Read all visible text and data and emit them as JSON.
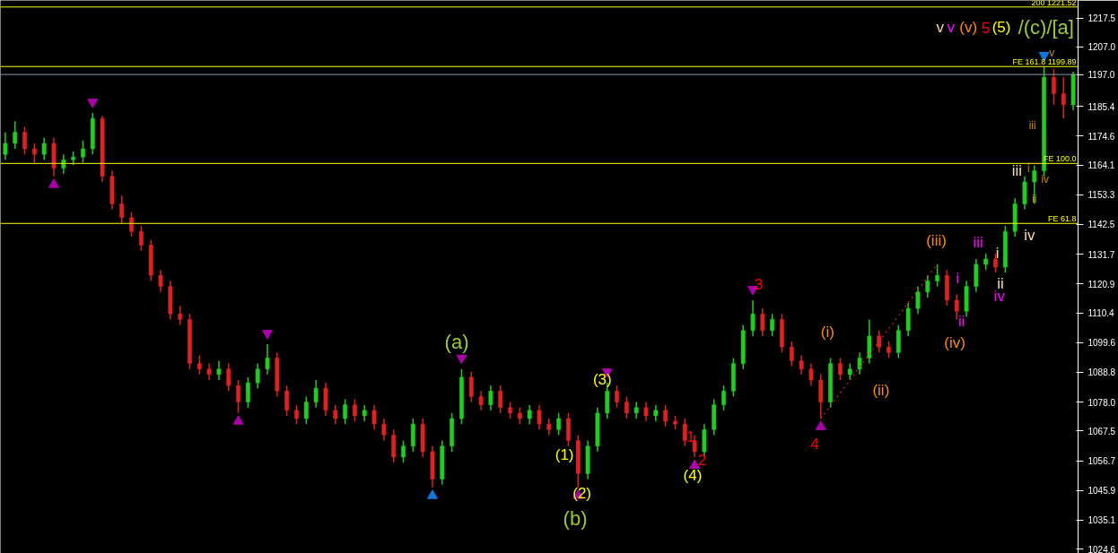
{
  "chart_data": {
    "type": "candlestick",
    "categories": [
      null,
      null,
      null,
      null,
      null,
      null,
      null,
      null,
      null,
      null,
      null,
      null,
      null,
      null,
      null,
      null,
      null,
      null,
      null,
      null,
      null,
      null,
      null,
      null,
      null,
      null,
      null,
      null,
      null,
      null,
      null,
      null,
      null,
      null,
      null,
      null,
      null,
      null,
      null,
      null,
      null,
      null,
      null,
      null,
      null,
      null,
      null,
      null,
      null,
      null,
      null,
      null,
      null,
      null,
      null,
      null,
      null,
      null,
      null,
      null,
      null,
      null,
      null,
      null,
      null,
      null,
      null,
      null,
      null,
      null,
      null,
      null,
      null,
      null,
      null,
      null,
      null,
      null,
      null,
      null,
      null,
      null,
      null,
      null,
      null,
      null,
      null,
      null,
      null,
      null,
      null,
      null,
      null,
      null,
      null,
      null,
      null,
      null,
      null,
      null,
      null,
      null,
      null,
      null,
      null,
      null,
      null,
      null,
      null,
      null,
      null
    ],
    "ohlc": [
      [
        1168,
        1176,
        1166,
        1172
      ],
      [
        1172,
        1180,
        1170,
        1176
      ],
      [
        1176,
        1178,
        1168,
        1170
      ],
      [
        1170,
        1172,
        1165,
        1168
      ],
      [
        1168,
        1174,
        1166,
        1172
      ],
      [
        1172,
        1174,
        1160,
        1163
      ],
      [
        1163,
        1168,
        1161,
        1166
      ],
      [
        1166,
        1169,
        1164,
        1167
      ],
      [
        1167,
        1173,
        1165,
        1170
      ],
      [
        1170,
        1183,
        1168,
        1181
      ],
      [
        1181,
        1182,
        1158,
        1160
      ],
      [
        1160,
        1162,
        1148,
        1150
      ],
      [
        1150,
        1153,
        1143,
        1145
      ],
      [
        1145,
        1147,
        1138,
        1140
      ],
      [
        1140,
        1142,
        1133,
        1135
      ],
      [
        1135,
        1137,
        1122,
        1124
      ],
      [
        1124,
        1126,
        1118,
        1120
      ],
      [
        1120,
        1122,
        1108,
        1110
      ],
      [
        1110,
        1113,
        1106,
        1108
      ],
      [
        1108,
        1110,
        1090,
        1092
      ],
      [
        1092,
        1095,
        1088,
        1090
      ],
      [
        1090,
        1092,
        1086,
        1088
      ],
      [
        1088,
        1093,
        1086,
        1090
      ],
      [
        1090,
        1092,
        1082,
        1084
      ],
      [
        1084,
        1086,
        1074,
        1078
      ],
      [
        1078,
        1087,
        1076,
        1085
      ],
      [
        1085,
        1092,
        1083,
        1090
      ],
      [
        1090,
        1099,
        1088,
        1094
      ],
      [
        1094,
        1096,
        1080,
        1082
      ],
      [
        1082,
        1084,
        1073,
        1075
      ],
      [
        1075,
        1077,
        1070,
        1072
      ],
      [
        1072,
        1080,
        1070,
        1078
      ],
      [
        1078,
        1086,
        1076,
        1083
      ],
      [
        1083,
        1085,
        1073,
        1075
      ],
      [
        1075,
        1077,
        1070,
        1072
      ],
      [
        1072,
        1079,
        1070,
        1077
      ],
      [
        1077,
        1079,
        1071,
        1073
      ],
      [
        1073,
        1077,
        1071,
        1075
      ],
      [
        1075,
        1077,
        1068,
        1070
      ],
      [
        1070,
        1072,
        1064,
        1066
      ],
      [
        1066,
        1068,
        1056,
        1058
      ],
      [
        1058,
        1064,
        1056,
        1062
      ],
      [
        1062,
        1072,
        1060,
        1070
      ],
      [
        1070,
        1072,
        1058,
        1060
      ],
      [
        1060,
        1062,
        1047,
        1050
      ],
      [
        1050,
        1064,
        1048,
        1062
      ],
      [
        1062,
        1074,
        1060,
        1072
      ],
      [
        1072,
        1090,
        1070,
        1087
      ],
      [
        1087,
        1089,
        1078,
        1080
      ],
      [
        1080,
        1082,
        1075,
        1077
      ],
      [
        1077,
        1084,
        1075,
        1082
      ],
      [
        1082,
        1084,
        1074,
        1076
      ],
      [
        1076,
        1078,
        1072,
        1074
      ],
      [
        1074,
        1076,
        1070,
        1072
      ],
      [
        1072,
        1077,
        1070,
        1075
      ],
      [
        1075,
        1077,
        1068,
        1070
      ],
      [
        1070,
        1072,
        1066,
        1068
      ],
      [
        1068,
        1074,
        1066,
        1072
      ],
      [
        1072,
        1074,
        1062,
        1064
      ],
      [
        1064,
        1066,
        1047,
        1052
      ],
      [
        1052,
        1064,
        1050,
        1062
      ],
      [
        1062,
        1076,
        1060,
        1074
      ],
      [
        1074,
        1085,
        1072,
        1082
      ],
      [
        1082,
        1084,
        1076,
        1078
      ],
      [
        1078,
        1080,
        1072,
        1074
      ],
      [
        1074,
        1078,
        1072,
        1076
      ],
      [
        1076,
        1078,
        1071,
        1073
      ],
      [
        1073,
        1077,
        1071,
        1075
      ],
      [
        1075,
        1077,
        1069,
        1071
      ],
      [
        1071,
        1073,
        1068,
        1070
      ],
      [
        1070,
        1072,
        1062,
        1064
      ],
      [
        1064,
        1066,
        1058,
        1060
      ],
      [
        1060,
        1070,
        1058,
        1068
      ],
      [
        1068,
        1079,
        1066,
        1077
      ],
      [
        1077,
        1084,
        1075,
        1082
      ],
      [
        1082,
        1094,
        1080,
        1092
      ],
      [
        1092,
        1106,
        1090,
        1104
      ],
      [
        1104,
        1115,
        1102,
        1110
      ],
      [
        1110,
        1112,
        1102,
        1104
      ],
      [
        1104,
        1110,
        1102,
        1108
      ],
      [
        1108,
        1110,
        1096,
        1098
      ],
      [
        1098,
        1100,
        1091,
        1093
      ],
      [
        1093,
        1095,
        1088,
        1090
      ],
      [
        1090,
        1092,
        1084,
        1086
      ],
      [
        1086,
        1088,
        1072,
        1078
      ],
      [
        1078,
        1094,
        1076,
        1092
      ],
      [
        1092,
        1094,
        1086,
        1088
      ],
      [
        1088,
        1092,
        1086,
        1090
      ],
      [
        1090,
        1096,
        1088,
        1094
      ],
      [
        1094,
        1108,
        1092,
        1102
      ],
      [
        1102,
        1104,
        1096,
        1098
      ],
      [
        1098,
        1100,
        1094,
        1096
      ],
      [
        1096,
        1106,
        1094,
        1104
      ],
      [
        1104,
        1114,
        1102,
        1112
      ],
      [
        1112,
        1120,
        1110,
        1118
      ],
      [
        1118,
        1124,
        1116,
        1122
      ],
      [
        1122,
        1128,
        1120,
        1124
      ],
      [
        1124,
        1126,
        1113,
        1115
      ],
      [
        1115,
        1117,
        1108,
        1111
      ],
      [
        1111,
        1122,
        1109,
        1120
      ],
      [
        1120,
        1130,
        1118,
        1128
      ],
      [
        1128,
        1132,
        1126,
        1130
      ],
      [
        1130,
        1132,
        1125,
        1127
      ],
      [
        1127,
        1142,
        1125,
        1140
      ],
      [
        1140,
        1152,
        1138,
        1150
      ],
      [
        1150,
        1160,
        1148,
        1158
      ],
      [
        1158,
        1164,
        1150,
        1162
      ],
      [
        1162,
        1200,
        1160,
        1196
      ],
      [
        1196,
        1199,
        1186,
        1190
      ],
      [
        1190,
        1196,
        1181,
        1186
      ],
      [
        1186,
        1198,
        1184,
        1197
      ]
    ],
    "series": [
      {
        "type": "scatter",
        "marker": "triangle",
        "color": "#aa00aa",
        "values": [
          null,
          null,
          null,
          null,
          null,
          1157,
          null,
          null,
          null,
          null,
          null,
          null,
          null,
          null,
          null,
          null,
          null,
          null,
          null,
          null,
          null,
          null,
          null,
          null,
          1071,
          null,
          null,
          null,
          null,
          null,
          null,
          null,
          null,
          null,
          null,
          null,
          null,
          null,
          null,
          null,
          null,
          null,
          null,
          null,
          null,
          null,
          null,
          null,
          null,
          null,
          null,
          null,
          null,
          null,
          null,
          null,
          null,
          null,
          null,
          1044,
          null,
          null,
          null,
          null,
          null,
          null,
          null,
          null,
          null,
          null,
          null,
          1055,
          null,
          null,
          null,
          null,
          null,
          null,
          null,
          null,
          null,
          null,
          null,
          null,
          1069,
          null,
          null,
          null,
          null,
          null,
          null,
          null,
          null,
          null,
          null,
          null,
          null,
          null,
          null,
          null,
          null,
          null,
          null,
          null,
          null,
          null,
          null,
          null,
          null,
          null,
          null
        ]
      },
      {
        "type": "scatter",
        "marker": "triangle",
        "color": "#aa00aa",
        "values": [
          null,
          null,
          null,
          null,
          null,
          null,
          null,
          null,
          null,
          1187,
          null,
          null,
          null,
          null,
          null,
          null,
          null,
          null,
          null,
          null,
          null,
          null,
          null,
          null,
          null,
          null,
          null,
          1103,
          null,
          null,
          null,
          null,
          null,
          null,
          null,
          null,
          null,
          null,
          null,
          null,
          null,
          null,
          null,
          null,
          null,
          null,
          null,
          1094,
          null,
          null,
          null,
          null,
          null,
          null,
          null,
          null,
          null,
          null,
          null,
          null,
          null,
          null,
          1089,
          null,
          null,
          null,
          null,
          null,
          null,
          null,
          null,
          null,
          null,
          null,
          null,
          null,
          null,
          1119,
          null,
          null,
          null,
          null,
          null,
          null,
          null,
          null,
          null,
          null,
          null,
          null,
          null,
          null,
          null,
          null,
          null,
          null,
          null,
          null,
          null,
          null,
          null,
          null,
          null,
          null,
          null,
          null,
          null,
          null,
          null,
          null,
          null
        ]
      },
      {
        "type": "scatter",
        "marker": "triangle",
        "color": "#1177dd",
        "values": [
          null,
          null,
          null,
          null,
          null,
          null,
          null,
          null,
          null,
          null,
          null,
          null,
          null,
          null,
          null,
          null,
          null,
          null,
          null,
          null,
          null,
          null,
          null,
          null,
          null,
          null,
          null,
          null,
          null,
          null,
          null,
          null,
          null,
          null,
          null,
          null,
          null,
          null,
          null,
          null,
          null,
          null,
          null,
          null,
          1044,
          null,
          null,
          null,
          null,
          null,
          null,
          null,
          null,
          null,
          null,
          null,
          null,
          null,
          null,
          null,
          null,
          null,
          null,
          null,
          null,
          null,
          null,
          null,
          null,
          null,
          null,
          null,
          null,
          null,
          null,
          null,
          null,
          null,
          null,
          null,
          null,
          null,
          null,
          null,
          null,
          null,
          null,
          null,
          null,
          null,
          null,
          null,
          null,
          null,
          null,
          null,
          null,
          null,
          null,
          null,
          null,
          null,
          null,
          null,
          null,
          null,
          null,
          null,
          null,
          null,
          null
        ]
      },
      {
        "type": "scatter",
        "marker": "triangle",
        "color": "#1177dd",
        "values": [
          null,
          null,
          null,
          null,
          null,
          null,
          null,
          null,
          null,
          null,
          null,
          null,
          null,
          null,
          null,
          null,
          null,
          null,
          null,
          null,
          null,
          null,
          null,
          null,
          null,
          null,
          null,
          null,
          null,
          null,
          null,
          null,
          null,
          null,
          null,
          null,
          null,
          null,
          null,
          null,
          null,
          null,
          null,
          null,
          null,
          null,
          null,
          null,
          null,
          null,
          null,
          null,
          null,
          null,
          null,
          null,
          null,
          null,
          null,
          null,
          null,
          null,
          null,
          null,
          null,
          null,
          null,
          null,
          null,
          null,
          null,
          null,
          null,
          null,
          null,
          null,
          null,
          null,
          null,
          null,
          null,
          null,
          null,
          null,
          null,
          null,
          null,
          null,
          null,
          null,
          null,
          null,
          null,
          null,
          null,
          null,
          null,
          null,
          null,
          null,
          null,
          null,
          null,
          null,
          null,
          null,
          null,
          1204,
          null,
          null,
          null
        ]
      },
      {
        "type": "line",
        "line_style": "dotted",
        "color": "#dd2222",
        "values": [
          null,
          null,
          null,
          null,
          null,
          null,
          null,
          null,
          null,
          null,
          null,
          null,
          null,
          null,
          null,
          null,
          null,
          null,
          null,
          null,
          null,
          null,
          null,
          null,
          null,
          null,
          null,
          null,
          null,
          null,
          null,
          null,
          null,
          null,
          null,
          null,
          null,
          null,
          null,
          null,
          null,
          null,
          null,
          null,
          null,
          null,
          null,
          null,
          null,
          null,
          null,
          null,
          null,
          null,
          null,
          null,
          null,
          null,
          null,
          null,
          null,
          null,
          null,
          null,
          null,
          null,
          null,
          null,
          null,
          null,
          null,
          null,
          null,
          null,
          null,
          null,
          null,
          null,
          null,
          null,
          null,
          null,
          null,
          null,
          1072,
          null,
          null,
          null,
          null,
          null,
          null,
          null,
          null,
          null,
          null,
          null,
          1128,
          null,
          null,
          null,
          null,
          null,
          null,
          null,
          null,
          null,
          null,
          null,
          null,
          null,
          null
        ]
      }
    ],
    "ylim": [
      1023.0,
      1223.9
    ],
    "yticks": [
      {
        "value": 1024.6,
        "label": "1024.6"
      },
      {
        "value": 1035.1,
        "label": "1035.1"
      },
      {
        "value": 1045.9,
        "label": "1045.9"
      },
      {
        "value": 1056.7,
        "label": "1056.7"
      },
      {
        "value": 1067.5,
        "label": "1067.5"
      },
      {
        "value": 1078,
        "label": "1078.0"
      },
      {
        "value": 1088.8,
        "label": "1088.8"
      },
      {
        "value": 1099.6,
        "label": "1099.6"
      },
      {
        "value": 1110.4,
        "label": "1110.4"
      },
      {
        "value": 1120.9,
        "label": "1120.9"
      },
      {
        "value": 1131.7,
        "label": "1131.7"
      },
      {
        "value": 1142.5,
        "label": "1142.5"
      },
      {
        "value": 1153.3,
        "label": "1153.3"
      },
      {
        "value": 1164.1,
        "label": "1164.1"
      },
      {
        "value": 1174.6,
        "label": "1174.6"
      },
      {
        "value": 1185.4,
        "label": "1185.4"
      },
      {
        "value": 1197,
        "label": "1197.0"
      },
      {
        "value": 1207,
        "label": "1207.0"
      },
      {
        "value": 1217.5,
        "label": "1217.5"
      }
    ],
    "tick_labels": "y",
    "ref_lines": [
      {
        "axis": "y",
        "value": 1221.52,
        "label": "200 1221.52",
        "color": "#ffff00"
      },
      {
        "axis": "y",
        "value": 1199.89,
        "label": "FE 161.8 1199.89",
        "color": "#ffff00"
      },
      {
        "axis": "y",
        "value": 1197.0,
        "color": "#8899aa"
      },
      {
        "axis": "y",
        "value": 1164.7,
        "label": "FE 100.0",
        "color": "#ffff00"
      },
      {
        "axis": "y",
        "value": 1142.9,
        "label": "FE 61.8",
        "color": "#ffff00"
      }
    ],
    "annotations": [
      "(a)",
      "(b)",
      "(1)",
      "(2)",
      "(3)",
      "(4)",
      "1",
      "2",
      "3",
      "4",
      "(i)",
      "(ii)",
      "(iii)",
      "(iv)",
      "i",
      "ii",
      "iii",
      "iv",
      "i",
      "ii",
      "iii",
      "iv",
      "i",
      "ii",
      "iv",
      "iii",
      "v",
      "v",
      "v",
      "(v)",
      "5",
      "(5)",
      "/(c)/[a]"
    ]
  }
}
